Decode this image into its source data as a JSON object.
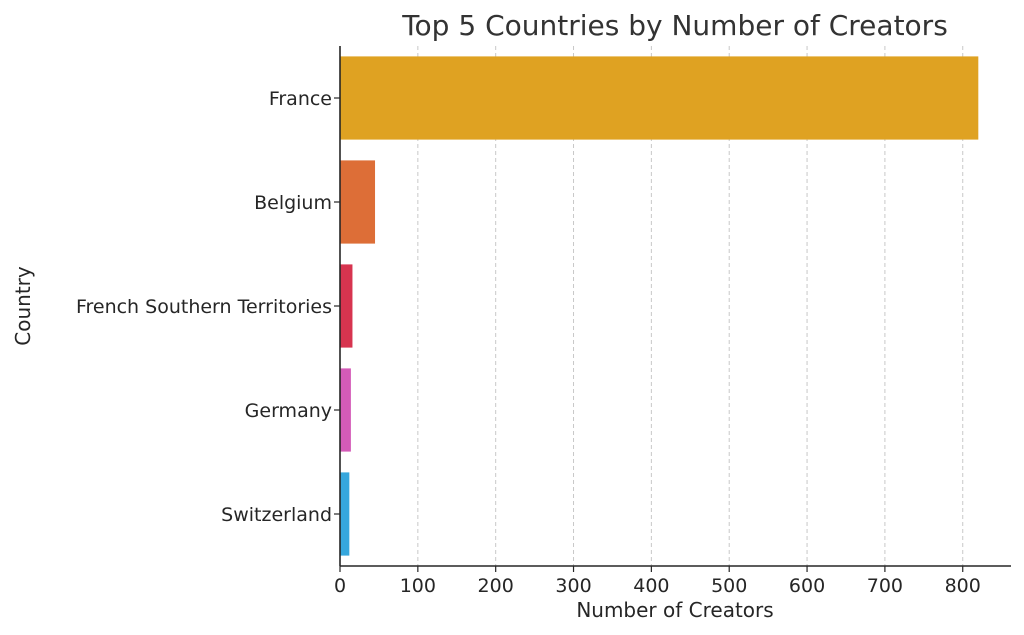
{
  "chart_data": {
    "type": "bar",
    "orientation": "horizontal",
    "title": "Top 5 Countries by Number of Creators",
    "xlabel": "Number of Creators",
    "ylabel": "Country",
    "categories": [
      "France",
      "Belgium",
      "French Southern Territories",
      "Germany",
      "Switzerland"
    ],
    "values": [
      820,
      45,
      16,
      14,
      12
    ],
    "colors": [
      "#dfa222",
      "#dd6e37",
      "#d7344f",
      "#d45bb8",
      "#36a7dd"
    ],
    "xlim": [
      0,
      862
    ],
    "xticks": [
      0,
      100,
      200,
      300,
      400,
      500,
      600,
      700,
      800
    ],
    "grid": "x, dashed",
    "legend": "none"
  }
}
